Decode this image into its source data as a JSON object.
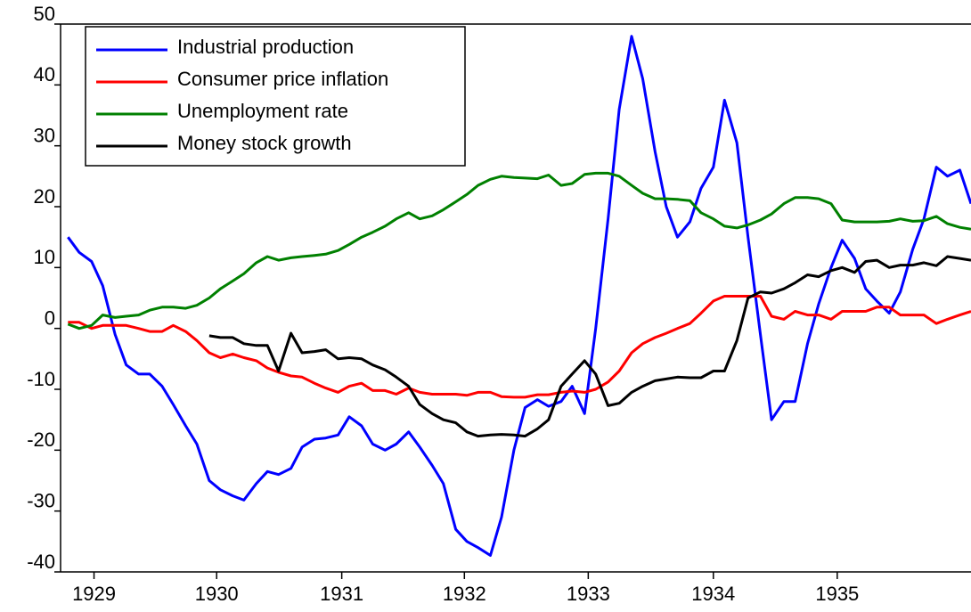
{
  "chart_data": {
    "type": "line",
    "x": [
      1929.0,
      1929.09,
      1929.19,
      1929.28,
      1929.38,
      1929.47,
      1929.57,
      1929.66,
      1929.76,
      1929.85,
      1929.95,
      1930.04,
      1930.14,
      1930.23,
      1930.33,
      1930.42,
      1930.52,
      1930.61,
      1930.7,
      1930.8,
      1930.89,
      1930.99,
      1931.08,
      1931.18,
      1931.27,
      1931.37,
      1931.46,
      1931.56,
      1931.65,
      1931.75,
      1931.84,
      1931.94,
      1932.03,
      1932.13,
      1932.22,
      1932.31,
      1932.41,
      1932.5,
      1932.6,
      1932.69,
      1932.79,
      1932.88,
      1932.98,
      1933.07,
      1933.17,
      1933.26,
      1933.36,
      1933.45,
      1933.55,
      1933.64,
      1933.74,
      1933.83,
      1933.92,
      1934.02,
      1934.11,
      1934.21,
      1934.3,
      1934.4,
      1934.49,
      1934.59,
      1934.68,
      1934.78,
      1934.87,
      1934.97,
      1935.06,
      1935.16,
      1935.25,
      1935.35,
      1935.44,
      1935.53,
      1935.63,
      1935.72,
      1935.82,
      1935.91,
      1936.01,
      1936.1,
      1936.2,
      1936.29
    ],
    "series": [
      {
        "name": "Industrial production",
        "color": "#0000ff",
        "values": [
          15,
          12.5,
          11,
          7,
          -1,
          -6,
          -7.5,
          -7.5,
          -9.5,
          -12.5,
          -16,
          -19,
          -25,
          -26.5,
          -27.5,
          -28.2,
          -25.5,
          -23.5,
          -24,
          -23,
          -19.5,
          -18.2,
          -18,
          -17.5,
          -14.5,
          -16,
          -19,
          -20,
          -19,
          -17,
          -19.5,
          -22.5,
          -25.5,
          -33,
          -35,
          -36,
          -37.3,
          -31,
          -20,
          -13,
          -11.7,
          -12.8,
          -12,
          -9.5,
          -14,
          0,
          18,
          36,
          48,
          41,
          29,
          20,
          15,
          17.5,
          23,
          26.5,
          37.5,
          30.5,
          15,
          -1,
          -15,
          -12,
          -12,
          -2.5,
          4,
          10,
          14.5,
          11.5,
          6.5,
          4.5,
          2.5,
          6,
          13,
          18,
          26.5,
          25,
          26,
          20.5
        ]
      },
      {
        "name": "Consumer price inflation",
        "color": "#ff0000",
        "values": [
          1,
          1,
          0,
          0.5,
          0.5,
          0.5,
          0,
          -0.5,
          -0.5,
          0.5,
          -0.5,
          -2,
          -4,
          -4.8,
          -4.2,
          -4.8,
          -5.3,
          -6.5,
          -7.2,
          -7.8,
          -8,
          -9,
          -9.8,
          -10.5,
          -9.5,
          -9,
          -10.2,
          -10.2,
          -10.8,
          -9.8,
          -10.5,
          -10.8,
          -10.8,
          -10.8,
          -11,
          -10.5,
          -10.5,
          -11.2,
          -11.3,
          -11.3,
          -10.9,
          -10.9,
          -10.5,
          -10.3,
          -10.5,
          -10,
          -8.8,
          -7,
          -4,
          -2.5,
          -1.5,
          -0.8,
          0,
          0.8,
          2.5,
          4.5,
          5.3,
          5.3,
          5.3,
          5.3,
          2,
          1.5,
          2.8,
          2.2,
          2.2,
          1.5,
          2.8,
          2.8,
          2.8,
          3.5,
          3.5,
          2.2,
          2.2,
          2.2,
          0.8,
          1.5,
          2.2,
          2.8
        ]
      },
      {
        "name": "Unemployment rate",
        "color": "#008000",
        "values": [
          0.7,
          0,
          0.5,
          2.2,
          1.8,
          2,
          2.2,
          3,
          3.5,
          3.5,
          3.3,
          3.8,
          5,
          6.5,
          7.8,
          9,
          10.8,
          11.8,
          11.2,
          11.6,
          11.8,
          12,
          12.2,
          12.8,
          13.8,
          15,
          15.8,
          16.8,
          18,
          19,
          18,
          18.5,
          19.5,
          20.8,
          22,
          23.5,
          24.5,
          25,
          24.8,
          24.7,
          24.6,
          25.2,
          23.5,
          23.8,
          25.3,
          25.5,
          25.5,
          25,
          23.5,
          22.2,
          21.3,
          21.3,
          21.2,
          21,
          19,
          18,
          16.8,
          16.5,
          17,
          17.8,
          18.8,
          20.5,
          21.5,
          21.5,
          21.3,
          20.5,
          17.8,
          17.5,
          17.5,
          17.5,
          17.6,
          18,
          17.6,
          17.7,
          18.4,
          17.2,
          16.6,
          16.3
        ]
      },
      {
        "name": "Money stock growth",
        "color": "#000000",
        "values": [
          null,
          null,
          null,
          null,
          null,
          null,
          null,
          null,
          null,
          null,
          null,
          null,
          -1.2,
          -1.5,
          -1.5,
          -2.5,
          -2.8,
          -2.8,
          -7,
          -0.8,
          -4,
          -3.8,
          -3.5,
          -5,
          -4.8,
          -5,
          -6,
          -6.8,
          -8,
          -9.5,
          -12.5,
          -14,
          -15,
          -15.5,
          -17,
          -17.7,
          -17.5,
          -17.4,
          -17.5,
          -17.7,
          -16.5,
          -15,
          -9.5,
          -7.5,
          -5.3,
          -7.5,
          -12.7,
          -12.3,
          -10.5,
          -9.5,
          -8.6,
          -8.3,
          -8,
          -8.1,
          -8.1,
          -7,
          -7,
          -2,
          5,
          6,
          5.8,
          6.5,
          7.5,
          8.8,
          8.5,
          9.5,
          10,
          9.2,
          11,
          11.2,
          10,
          10.4,
          10.4,
          10.8,
          10.3,
          11.8,
          11.5,
          11.2
        ]
      }
    ],
    "xlim": [
      1928.94,
      1936.29
    ],
    "xticks": [
      {
        "value": 1929.21,
        "label": "1929"
      },
      {
        "value": 1930.2,
        "label": "1930"
      },
      {
        "value": 1931.21,
        "label": "1931"
      },
      {
        "value": 1932.2,
        "label": "1932"
      },
      {
        "value": 1933.2,
        "label": "1933"
      },
      {
        "value": 1934.21,
        "label": "1934"
      },
      {
        "value": 1935.21,
        "label": "1935"
      }
    ],
    "ylim": [
      -40,
      50
    ],
    "yticks": [
      -40,
      -30,
      -20,
      -10,
      0,
      10,
      20,
      30,
      40,
      50
    ],
    "legend": "upper left"
  }
}
